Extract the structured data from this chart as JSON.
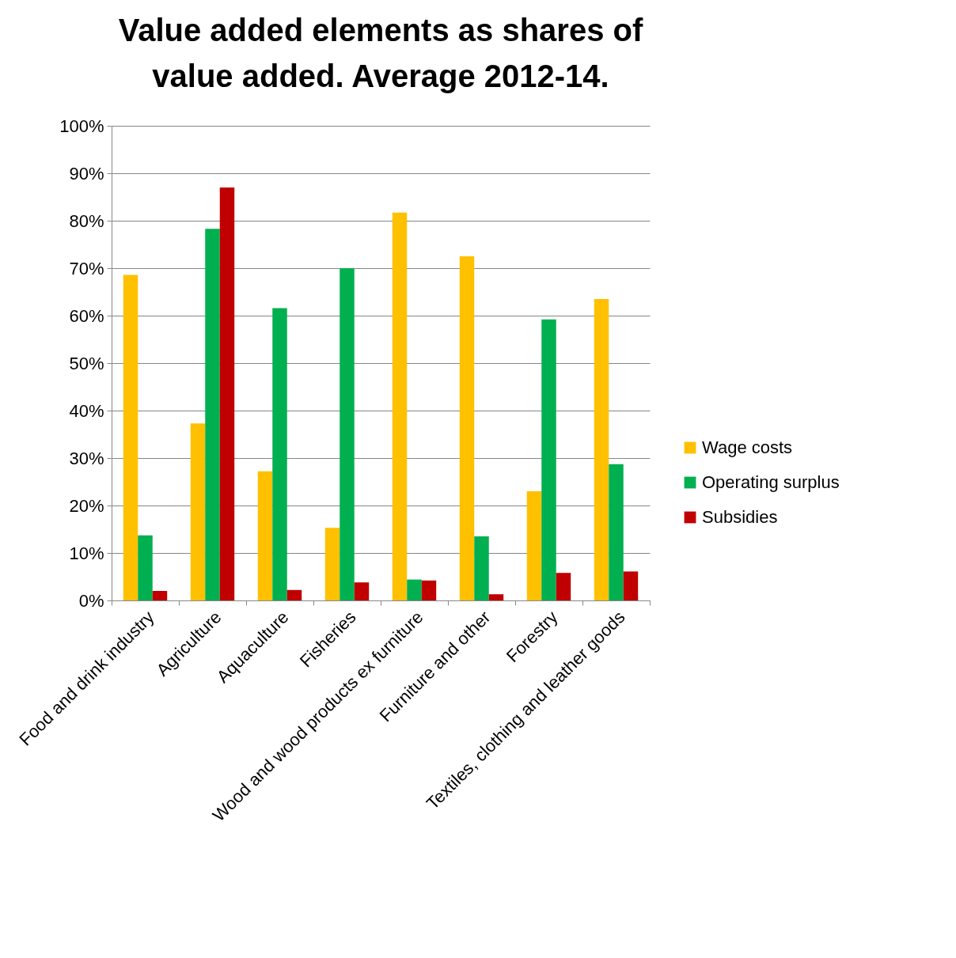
{
  "chart_data": {
    "type": "bar",
    "title": "Value added elements as shares of value added. Average 2012-14.",
    "categories": [
      "Food and drink industry",
      "Agriculture",
      "Aquaculture",
      "Fisheries",
      "Wood and wood products ex furniture",
      "Furniture and other",
      "Forestry",
      "Textiles, clothing and leather goods"
    ],
    "series": [
      {
        "name": "Wage costs",
        "color": "#ffc000",
        "values": [
          68.6,
          37.3,
          27.2,
          15.3,
          81.7,
          72.5,
          23.0,
          63.5
        ]
      },
      {
        "name": "Operating surplus",
        "color": "#00b050",
        "values": [
          13.7,
          78.3,
          61.6,
          70.0,
          4.4,
          13.5,
          59.2,
          28.7
        ]
      },
      {
        "name": "Subsidies",
        "color": "#c00000",
        "values": [
          2.0,
          87.0,
          2.2,
          3.8,
          4.2,
          1.3,
          5.8,
          6.1
        ]
      }
    ],
    "ylim": [
      0,
      100
    ],
    "yticks": [
      {
        "value": 0,
        "label": "0%"
      },
      {
        "value": 10,
        "label": "10%"
      },
      {
        "value": 20,
        "label": "20%"
      },
      {
        "value": 30,
        "label": "30%"
      },
      {
        "value": 40,
        "label": "40%"
      },
      {
        "value": 50,
        "label": "50%"
      },
      {
        "value": 60,
        "label": "60%"
      },
      {
        "value": 70,
        "label": "70%"
      },
      {
        "value": 80,
        "label": "80%"
      },
      {
        "value": 90,
        "label": "90%"
      },
      {
        "value": 100,
        "label": "100%"
      }
    ],
    "grid": "y",
    "legend": "right"
  }
}
